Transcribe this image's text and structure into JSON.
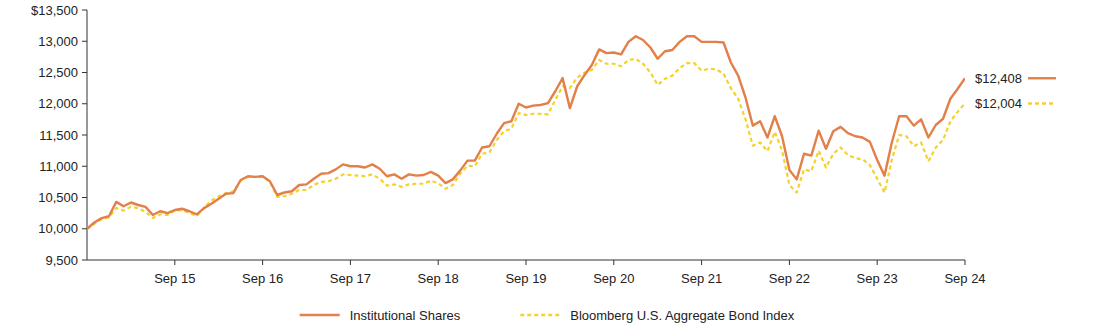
{
  "chart_data": {
    "type": "line",
    "x": [
      0,
      1,
      2,
      3,
      4,
      5,
      6,
      7,
      8,
      9,
      10,
      11,
      12,
      13,
      14,
      15,
      16,
      17,
      18,
      19,
      20,
      21,
      22,
      23,
      24,
      25,
      26,
      27,
      28,
      29,
      30,
      31,
      32,
      33,
      34,
      35,
      36,
      37,
      38,
      39,
      40,
      41,
      42,
      43,
      44,
      45,
      46,
      47,
      48,
      49,
      50,
      51,
      52,
      53,
      54,
      55,
      56,
      57,
      58,
      59,
      60,
      61,
      62,
      63,
      64,
      65,
      66,
      67,
      68,
      69,
      70,
      71,
      72,
      73,
      74,
      75,
      76,
      77,
      78,
      79,
      80,
      81,
      82,
      83,
      84,
      85,
      86,
      87,
      88,
      89,
      90,
      91,
      92,
      93,
      94,
      95,
      96,
      97,
      98,
      99,
      100,
      101,
      102,
      103,
      104,
      105,
      106,
      107,
      108,
      109,
      110,
      111,
      112,
      113,
      114,
      115,
      116,
      117,
      118,
      119,
      120
    ],
    "xlim": [
      0,
      120
    ],
    "xticks": [
      {
        "value": 12,
        "label": "Sep 15"
      },
      {
        "value": 24,
        "label": "Sep 16"
      },
      {
        "value": 36,
        "label": "Sep 17"
      },
      {
        "value": 48,
        "label": "Sep 18"
      },
      {
        "value": 60,
        "label": "Sep 19"
      },
      {
        "value": 72,
        "label": "Sep 20"
      },
      {
        "value": 84,
        "label": "Sep 21"
      },
      {
        "value": 96,
        "label": "Sep 22"
      },
      {
        "value": 108,
        "label": "Sep 23"
      },
      {
        "value": 120,
        "label": "Sep 24"
      }
    ],
    "ylim": [
      9500,
      13500
    ],
    "yticks": [
      {
        "value": 9500,
        "label": "9,500"
      },
      {
        "value": 10000,
        "label": "10,000"
      },
      {
        "value": 10500,
        "label": "10,500"
      },
      {
        "value": 11000,
        "label": "11,000"
      },
      {
        "value": 11500,
        "label": "11,500"
      },
      {
        "value": 12000,
        "label": "12,000"
      },
      {
        "value": 12500,
        "label": "12,500"
      },
      {
        "value": 13000,
        "label": "13,000"
      },
      {
        "value": 13500,
        "label": "$13,500"
      }
    ],
    "grid": false,
    "legend": "bottom",
    "series": [
      {
        "name": "Institutional Shares",
        "color": "#e37f48",
        "line_style": "solid",
        "end_label": "$12,408",
        "values": [
          10000,
          10100,
          10170,
          10200,
          10430,
          10360,
          10420,
          10380,
          10350,
          10220,
          10280,
          10250,
          10300,
          10320,
          10280,
          10230,
          10330,
          10400,
          10480,
          10560,
          10570,
          10780,
          10840,
          10830,
          10840,
          10760,
          10540,
          10580,
          10600,
          10700,
          10710,
          10800,
          10880,
          10890,
          10950,
          11030,
          11000,
          11000,
          10980,
          11030,
          10960,
          10840,
          10870,
          10800,
          10870,
          10850,
          10860,
          10910,
          10850,
          10730,
          10790,
          10930,
          11090,
          11090,
          11300,
          11320,
          11520,
          11690,
          11720,
          12000,
          11940,
          11970,
          11980,
          12010,
          12200,
          12410,
          11930,
          12280,
          12460,
          12620,
          12870,
          12810,
          12820,
          12790,
          12990,
          13080,
          13020,
          12900,
          12720,
          12840,
          12860,
          12990,
          13080,
          13080,
          12990,
          12990,
          12990,
          12980,
          12660,
          12450,
          12100,
          11650,
          11720,
          11460,
          11800,
          11480,
          10940,
          10790,
          11200,
          11170,
          11570,
          11280,
          11560,
          11630,
          11530,
          11480,
          11460,
          11390,
          11100,
          10850,
          11380,
          11800,
          11800,
          11650,
          11750,
          11460,
          11660,
          11760,
          12080,
          12240,
          12408
        ]
      },
      {
        "name": "Bloomberg U.S. Aggregate Bond Index",
        "color": "#f5d12e",
        "line_style": "dashed",
        "end_label": "$12,004",
        "values": [
          10000,
          10080,
          10150,
          10180,
          10330,
          10290,
          10350,
          10330,
          10270,
          10170,
          10230,
          10220,
          10290,
          10300,
          10250,
          10200,
          10340,
          10450,
          10520,
          10570,
          10600,
          10770,
          10830,
          10830,
          10840,
          10750,
          10510,
          10520,
          10560,
          10620,
          10620,
          10700,
          10750,
          10760,
          10800,
          10870,
          10860,
          10850,
          10840,
          10870,
          10800,
          10690,
          10710,
          10670,
          10710,
          10720,
          10720,
          10770,
          10730,
          10640,
          10700,
          10880,
          11010,
          11000,
          11200,
          11220,
          11420,
          11560,
          11600,
          11850,
          11820,
          11840,
          11840,
          11830,
          12060,
          12280,
          12250,
          12420,
          12500,
          12540,
          12700,
          12640,
          12640,
          12600,
          12700,
          12720,
          12640,
          12500,
          12300,
          12400,
          12450,
          12570,
          12650,
          12650,
          12530,
          12560,
          12550,
          12480,
          12250,
          12080,
          11750,
          11330,
          11380,
          11240,
          11550,
          11250,
          10700,
          10580,
          10950,
          10920,
          11250,
          10980,
          11200,
          11300,
          11180,
          11130,
          11110,
          11020,
          10800,
          10580,
          11100,
          11500,
          11480,
          11320,
          11380,
          11080,
          11300,
          11420,
          11720,
          11870,
          12004
        ]
      }
    ]
  }
}
